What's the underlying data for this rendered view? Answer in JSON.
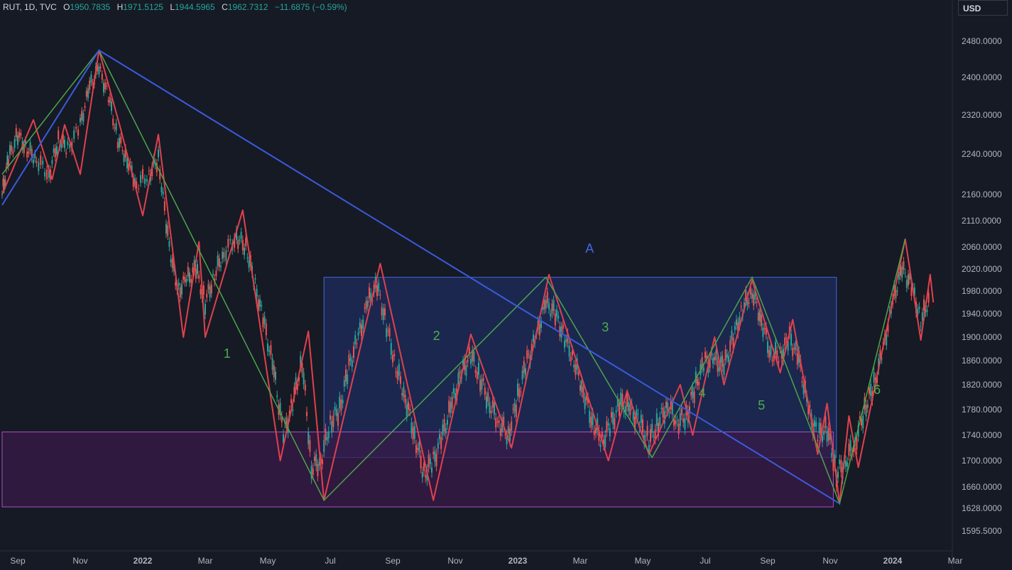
{
  "legend": {
    "symbol": "RUT, 1D, TVC",
    "o_label": "O",
    "o": "1950.7835",
    "h_label": "H",
    "h": "1971.5125",
    "l_label": "L",
    "l": "1944.5965",
    "c_label": "C",
    "c": "1962.7312",
    "change": "−11.6875 (−0.59%)"
  },
  "currency": "USD",
  "colors": {
    "background": "#161a25",
    "up": "#26a69a",
    "down": "#ef5350",
    "zigzag_red": "#e0414d",
    "wave_green": "#4ca44c",
    "trend_blue": "#3a5bdc",
    "box_blue_fill": "#1e2c5c",
    "box_blue_border": "#4466dd",
    "box_purple_fill": "#3a1a48",
    "box_purple_border": "#b04cc8",
    "wave_label": "#4caf50",
    "a_label": "#4466dd"
  },
  "chart_data": {
    "type": "candlestick",
    "title": "RUT, 1D, TVC",
    "ylim": [
      1570,
      2520
    ],
    "y_ticks": [
      2480,
      2400,
      2320,
      2240,
      2160,
      2110,
      2060,
      2020,
      1980,
      1940,
      1900,
      1860,
      1820,
      1780,
      1740,
      1700,
      1660,
      1628,
      1595.5
    ],
    "y_tick_labels": [
      "2480.0000",
      "2400.0000",
      "2320.0000",
      "2240.0000",
      "2160.0000",
      "2110.0000",
      "2060.0000",
      "2020.0000",
      "1980.0000",
      "1940.0000",
      "1900.0000",
      "1860.0000",
      "1820.0000",
      "1780.0000",
      "1740.0000",
      "1700.0000",
      "1660.0000",
      "1628.0000",
      "1595.5000"
    ],
    "x_ticks": [
      "Sep",
      "Nov",
      "2022",
      "Mar",
      "May",
      "Jul",
      "Sep",
      "Nov",
      "2023",
      "Mar",
      "May",
      "Jul",
      "Sep",
      "Nov",
      "2024",
      "Mar"
    ],
    "x_tick_positions": [
      0,
      2,
      4,
      6,
      8,
      10,
      12,
      14,
      16,
      18,
      20,
      22,
      24,
      26,
      28,
      30
    ],
    "x_bold_ticks": [
      "2022",
      "2023",
      "2024"
    ],
    "zigzag": [
      [
        -0.5,
        2160
      ],
      [
        0.5,
        2310
      ],
      [
        1.1,
        2190
      ],
      [
        1.5,
        2300
      ],
      [
        2.0,
        2200
      ],
      [
        2.6,
        2460
      ],
      [
        3.3,
        2290
      ],
      [
        4.0,
        2120
      ],
      [
        4.5,
        2280
      ],
      [
        5.3,
        1900
      ],
      [
        5.8,
        2070
      ],
      [
        6.0,
        1900
      ],
      [
        7.2,
        2130
      ],
      [
        8.4,
        1700
      ],
      [
        9.3,
        1910
      ],
      [
        9.8,
        1640
      ],
      [
        11.6,
        2030
      ],
      [
        13.3,
        1640
      ],
      [
        14.5,
        1905
      ],
      [
        15.8,
        1720
      ],
      [
        17.0,
        2010
      ],
      [
        18.9,
        1700
      ],
      [
        19.5,
        1810
      ],
      [
        20.2,
        1710
      ],
      [
        21.2,
        1820
      ],
      [
        21.6,
        1740
      ],
      [
        22.3,
        1900
      ],
      [
        22.6,
        1820
      ],
      [
        23.5,
        2000
      ],
      [
        24.4,
        1840
      ],
      [
        24.8,
        1930
      ],
      [
        25.6,
        1710
      ],
      [
        25.9,
        1790
      ],
      [
        26.3,
        1635
      ],
      [
        26.6,
        1770
      ],
      [
        26.9,
        1690
      ],
      [
        28.4,
        2075
      ],
      [
        28.9,
        1895
      ],
      [
        29.2,
        2010
      ],
      [
        29.3,
        1960
      ]
    ],
    "candles": [
      [
        -0.5,
        2160
      ],
      [
        -0.3,
        2230
      ],
      [
        0.0,
        2280
      ],
      [
        0.3,
        2250
      ],
      [
        0.6,
        2230
      ],
      [
        1.0,
        2200
      ],
      [
        1.3,
        2270
      ],
      [
        1.6,
        2250
      ],
      [
        2.0,
        2300
      ],
      [
        2.3,
        2380
      ],
      [
        2.6,
        2420
      ],
      [
        2.9,
        2360
      ],
      [
        3.2,
        2270
      ],
      [
        3.5,
        2230
      ],
      [
        3.8,
        2180
      ],
      [
        4.2,
        2200
      ],
      [
        4.5,
        2230
      ],
      [
        4.8,
        2080
      ],
      [
        5.1,
        1980
      ],
      [
        5.4,
        2000
      ],
      [
        5.7,
        2020
      ],
      [
        6.0,
        1960
      ],
      [
        6.3,
        2010
      ],
      [
        6.6,
        2050
      ],
      [
        7.0,
        2080
      ],
      [
        7.3,
        2060
      ],
      [
        7.6,
        1990
      ],
      [
        7.9,
        1920
      ],
      [
        8.2,
        1840
      ],
      [
        8.5,
        1740
      ],
      [
        8.8,
        1790
      ],
      [
        9.1,
        1860
      ],
      [
        9.4,
        1690
      ],
      [
        9.7,
        1700
      ],
      [
        10.0,
        1760
      ],
      [
        10.3,
        1780
      ],
      [
        10.6,
        1850
      ],
      [
        10.9,
        1900
      ],
      [
        11.2,
        1960
      ],
      [
        11.5,
        1990
      ],
      [
        11.8,
        1920
      ],
      [
        12.1,
        1850
      ],
      [
        12.4,
        1800
      ],
      [
        12.7,
        1740
      ],
      [
        13.0,
        1680
      ],
      [
        13.3,
        1700
      ],
      [
        13.6,
        1740
      ],
      [
        13.9,
        1790
      ],
      [
        14.2,
        1840
      ],
      [
        14.5,
        1870
      ],
      [
        14.8,
        1830
      ],
      [
        15.1,
        1790
      ],
      [
        15.4,
        1760
      ],
      [
        15.7,
        1740
      ],
      [
        16.0,
        1800
      ],
      [
        16.3,
        1860
      ],
      [
        16.6,
        1900
      ],
      [
        16.9,
        1960
      ],
      [
        17.2,
        1940
      ],
      [
        17.5,
        1900
      ],
      [
        17.8,
        1860
      ],
      [
        18.1,
        1810
      ],
      [
        18.4,
        1760
      ],
      [
        18.7,
        1730
      ],
      [
        19.0,
        1760
      ],
      [
        19.3,
        1790
      ],
      [
        19.6,
        1780
      ],
      [
        19.9,
        1760
      ],
      [
        20.2,
        1730
      ],
      [
        20.5,
        1760
      ],
      [
        20.8,
        1790
      ],
      [
        21.1,
        1760
      ],
      [
        21.4,
        1770
      ],
      [
        21.7,
        1820
      ],
      [
        22.0,
        1860
      ],
      [
        22.3,
        1860
      ],
      [
        22.6,
        1850
      ],
      [
        22.9,
        1900
      ],
      [
        23.2,
        1950
      ],
      [
        23.5,
        1980
      ],
      [
        23.8,
        1930
      ],
      [
        24.1,
        1870
      ],
      [
        24.4,
        1870
      ],
      [
        24.7,
        1900
      ],
      [
        25.0,
        1860
      ],
      [
        25.3,
        1780
      ],
      [
        25.6,
        1740
      ],
      [
        25.9,
        1750
      ],
      [
        26.2,
        1680
      ],
      [
        26.5,
        1700
      ],
      [
        26.8,
        1730
      ],
      [
        27.1,
        1780
      ],
      [
        27.4,
        1820
      ],
      [
        27.7,
        1880
      ],
      [
        28.0,
        1960
      ],
      [
        28.3,
        2020
      ],
      [
        28.6,
        1990
      ],
      [
        28.9,
        1930
      ],
      [
        29.2,
        1970
      ]
    ],
    "wave_lines": [
      [
        [
          -0.5,
          2200
        ],
        [
          2.6,
          2460
        ],
        [
          9.8,
          1640
        ],
        [
          16.9,
          2005
        ],
        [
          20.3,
          1705
        ],
        [
          23.5,
          2005
        ],
        [
          26.3,
          1635
        ],
        [
          28.4,
          2075
        ]
      ]
    ],
    "trend_lines": [
      [
        [
          -0.5,
          2140
        ],
        [
          2.6,
          2460
        ],
        [
          26.3,
          1635
        ]
      ]
    ],
    "boxes": [
      {
        "name": "blue-range",
        "x0": 9.8,
        "x1": 26.2,
        "y0": 1705,
        "y1": 2005
      },
      {
        "name": "purple-zone",
        "x0": -0.5,
        "x1": 26.1,
        "y0": 1630,
        "y1": 1745
      }
    ],
    "labels": [
      {
        "text": "A",
        "x": 18.3,
        "y": 2050,
        "color": "blue"
      },
      {
        "text": "1",
        "x": 6.7,
        "y": 1865,
        "color": "green"
      },
      {
        "text": "2",
        "x": 13.4,
        "y": 1895,
        "color": "green"
      },
      {
        "text": "3",
        "x": 18.8,
        "y": 1910,
        "color": "green"
      },
      {
        "text": "4",
        "x": 21.9,
        "y": 1800,
        "color": "green"
      },
      {
        "text": "5",
        "x": 23.8,
        "y": 1780,
        "color": "green"
      },
      {
        "text": "6",
        "x": 27.5,
        "y": 1805,
        "color": "green"
      }
    ]
  }
}
